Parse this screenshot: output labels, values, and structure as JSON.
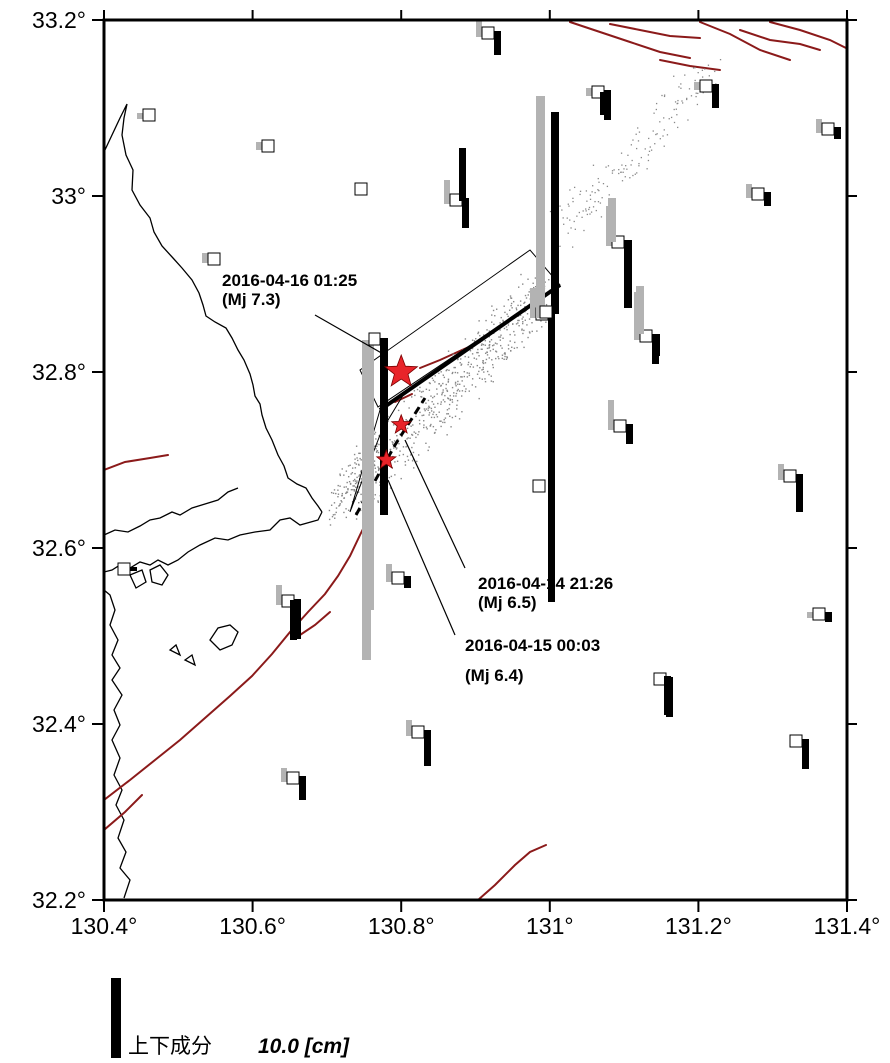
{
  "map": {
    "x_ticks": [
      {
        "value": 130.4,
        "label": "130.4°"
      },
      {
        "value": 130.6,
        "label": "130.6°"
      },
      {
        "value": 130.8,
        "label": "130.8°"
      },
      {
        "value": 131.0,
        "label": "131°"
      },
      {
        "value": 131.2,
        "label": "131.2°"
      },
      {
        "value": 131.4,
        "label": "131.4°"
      }
    ],
    "y_ticks": [
      {
        "value": 33.2,
        "label": "33.2°"
      },
      {
        "value": 33.0,
        "label": "33°"
      },
      {
        "value": 32.8,
        "label": "32.8°"
      },
      {
        "value": 32.6,
        "label": "32.6°"
      },
      {
        "value": 32.4,
        "label": "32.4°"
      },
      {
        "value": 32.2,
        "label": "32.2°"
      }
    ],
    "xlim": [
      130.4,
      131.4
    ],
    "ylim": [
      32.2,
      33.2
    ],
    "earthquakes": [
      {
        "datetime": "2016-04-16 01:25",
        "magnitude": "(Mj 7.3)",
        "lon": 130.8,
        "lat": 32.8,
        "size": "large"
      },
      {
        "datetime": "2016-04-14 21:26",
        "magnitude": "(Mj 6.5)",
        "lon": 130.8,
        "lat": 32.74,
        "size": "small"
      },
      {
        "datetime": "2016-04-15 00:03",
        "magnitude": "(Mj 6.4)",
        "lon": 130.78,
        "lat": 32.7,
        "size": "small"
      }
    ],
    "colors": {
      "fault": "#8b1a1a",
      "epicenter": "#e8242a",
      "horizontal_bar": "#b3b3b3",
      "vertical_bar": "#000000",
      "aftershock": "#888888"
    },
    "legend": {
      "label": "上下成分",
      "value": "10.0 [cm]"
    }
  }
}
